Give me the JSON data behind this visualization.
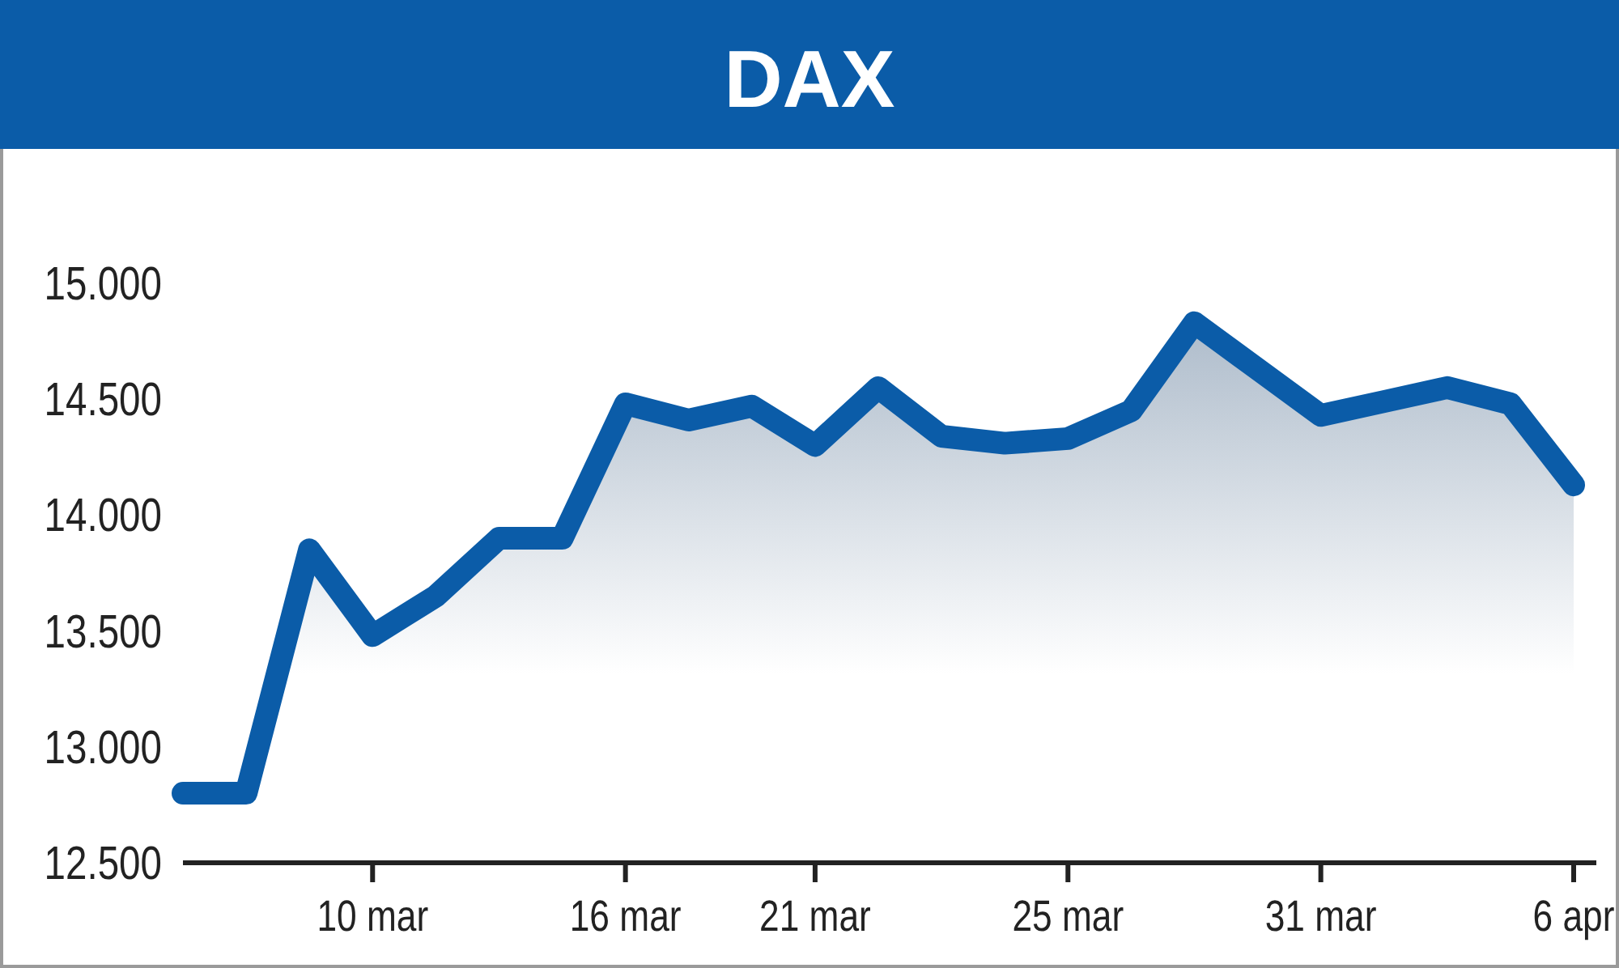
{
  "chart_data": {
    "type": "area",
    "title": "DAX",
    "categories": [
      null,
      null,
      null,
      "10 mar",
      null,
      null,
      null,
      "16 mar",
      null,
      null,
      "21 mar",
      null,
      null,
      null,
      "25 mar",
      null,
      null,
      null,
      "31 mar",
      null,
      null,
      null,
      "6 apr"
    ],
    "series": [
      {
        "color": "#0b5ca8",
        "values": [
          12800,
          12800,
          13850,
          13480,
          13650,
          13900,
          13900,
          14480,
          14410,
          14470,
          14300,
          14550,
          14340,
          14310,
          14330,
          14450,
          14830,
          14630,
          14430,
          14490,
          14550,
          14480,
          14130
        ]
      }
    ],
    "ylim": [
      12500,
      15000
    ],
    "yticks": [
      {
        "value": 12500,
        "label": "12.500"
      },
      {
        "value": 13000,
        "label": "13.000"
      },
      {
        "value": 13500,
        "label": "13.500"
      },
      {
        "value": 14000,
        "label": "14.000"
      },
      {
        "value": 14500,
        "label": "14.500"
      },
      {
        "value": 15000,
        "label": "15.000"
      }
    ],
    "grid": false
  }
}
